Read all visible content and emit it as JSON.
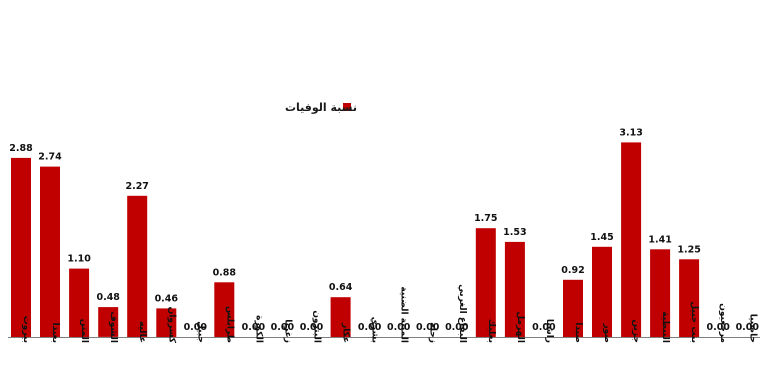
{
  "chart_data": {
    "type": "bar",
    "legend": {
      "label": "نسبة الوفيات",
      "position": "top-center"
    },
    "grid": false,
    "ylim": [
      0,
      3.2
    ],
    "color": "#C00000",
    "categories": [
      "بيروت",
      "بعبدا",
      "المتن",
      "الشوف",
      "عاليه",
      "كسروان",
      "جبيل",
      "طرابلس",
      "الكورة",
      "زغرتا",
      "البترون",
      "عكار",
      "بشري",
      "المنية الضنية",
      "زحلة",
      "البقاع الغربي",
      "بعلبك",
      "الهرمل",
      "راشيا",
      "صيدا",
      "صور",
      "جزين",
      "النبطية",
      "بنت جبيل",
      "مرجعيون",
      "حاصبيا"
    ],
    "values": [
      2.88,
      2.74,
      1.1,
      0.48,
      2.27,
      0.46,
      0.0,
      0.88,
      0.0,
      0.0,
      0.0,
      0.64,
      0.0,
      0.0,
      0.0,
      0.0,
      1.75,
      1.53,
      0.0,
      0.92,
      1.45,
      3.13,
      1.41,
      1.25,
      0.0,
      0.0
    ]
  }
}
